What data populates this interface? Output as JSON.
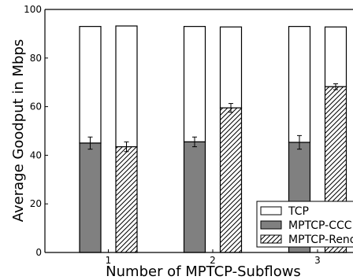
{
  "chart_data": {
    "type": "bar",
    "stacked": true,
    "xlabel": "Number of MPTCP-Subflows",
    "ylabel": "Average Goodput in Mbps",
    "ylim": [
      0,
      100
    ],
    "yticks": [
      0,
      20,
      40,
      60,
      80,
      100
    ],
    "categories": [
      "1",
      "2",
      "3"
    ],
    "series": [
      {
        "name": "TCP",
        "fill": "white",
        "bars": [
          {
            "category": "1",
            "variant": "MPTCP-CCC",
            "bottom": 45,
            "top": 93
          },
          {
            "category": "1",
            "variant": "MPTCP-Reno",
            "bottom": 43.5,
            "top": 93.2
          },
          {
            "category": "2",
            "variant": "MPTCP-CCC",
            "bottom": 45.5,
            "top": 93
          },
          {
            "category": "2",
            "variant": "MPTCP-Reno",
            "bottom": 59.5,
            "top": 92.8
          },
          {
            "category": "3",
            "variant": "MPTCP-CCC",
            "bottom": 45.3,
            "top": 93
          },
          {
            "category": "3",
            "variant": "MPTCP-Reno",
            "bottom": 68.2,
            "top": 92.8
          }
        ]
      },
      {
        "name": "MPTCP-CCC",
        "fill": "gray",
        "values": [
          45,
          45.5,
          45.3
        ],
        "errors": [
          2.5,
          2.0,
          2.8
        ]
      },
      {
        "name": "MPTCP-Reno",
        "fill": "hatch",
        "values": [
          43.5,
          59.5,
          68.2
        ],
        "errors": [
          2.0,
          1.8,
          1.2
        ]
      }
    ],
    "legend": {
      "placement": "bottom-right",
      "entries": [
        "TCP",
        "MPTCP-CCC",
        "MPTCP-Reno"
      ]
    },
    "colors": {
      "ccc": "#808080",
      "tcp": "#ffffff",
      "stroke": "#000000"
    }
  }
}
